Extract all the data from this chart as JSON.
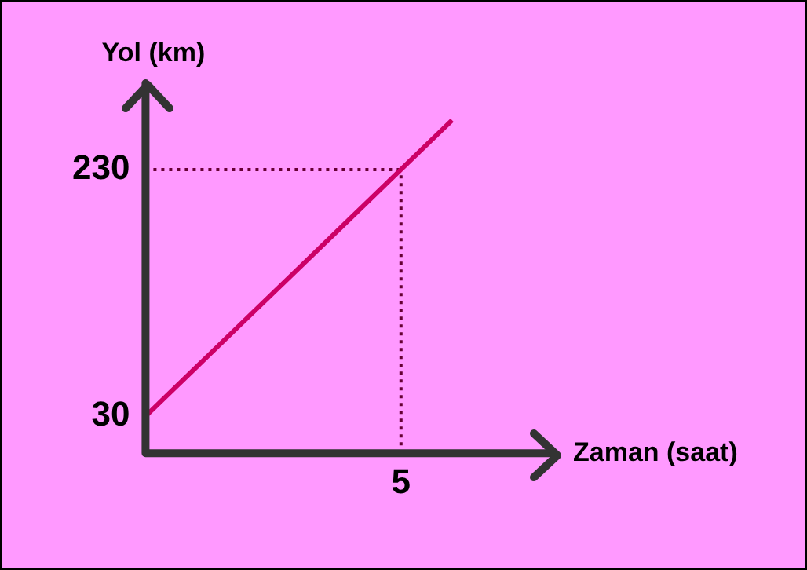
{
  "chart_data": {
    "type": "line",
    "xlabel": "Zaman (saat)",
    "ylabel": "Yol (km)",
    "categories": [
      null,
      null,
      null,
      null,
      null,
      "5",
      null,
      null,
      null
    ],
    "series": [
      {
        "color": "#cc0066",
        "values": [
          30,
          70,
          110,
          150,
          190,
          230,
          270,
          null,
          null
        ]
      }
    ],
    "ylim": [
      0,
      300
    ],
    "yticks": [
      30,
      230
    ],
    "grid": false,
    "legend": false,
    "marker": "none",
    "line_style": "solid",
    "ref_lines": [
      {
        "axis": "x",
        "value": "5",
        "color": "#660033",
        "line_style": "dotted"
      },
      {
        "axis": "y",
        "value": 230,
        "color": "#660033",
        "line_style": "dotted"
      }
    ]
  }
}
